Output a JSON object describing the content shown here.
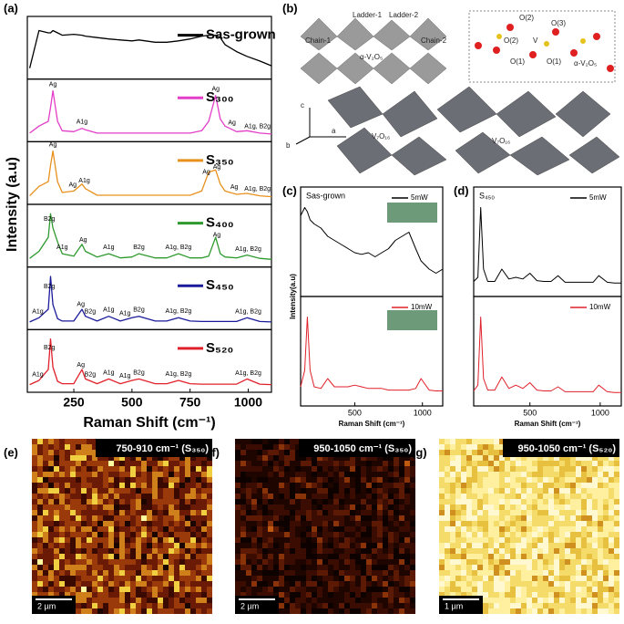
{
  "chart_data": [
    {
      "type": "line",
      "panel": "(a)",
      "ylabel": "Intensity (a.u)",
      "xlabel": "Raman Shift (cm⁻¹)",
      "x": [
        60,
        100,
        140,
        150,
        160,
        180,
        200,
        250,
        285,
        300,
        350,
        400,
        450,
        500,
        530,
        600,
        650,
        700,
        750,
        800,
        830,
        860,
        880,
        900,
        950,
        995,
        1050,
        1100
      ],
      "xlim": [
        50,
        1100
      ],
      "ylim": [
        0,
        1
      ],
      "xticks": [
        250,
        500,
        750,
        1000
      ],
      "series": [
        {
          "name": "Sas-grown",
          "color": "#000000",
          "values": [
            0.1,
            0.9,
            0.85,
            0.85,
            0.9,
            0.85,
            0.8,
            0.82,
            0.8,
            0.78,
            0.75,
            0.72,
            0.7,
            0.68,
            0.7,
            0.65,
            0.65,
            0.68,
            0.72,
            0.78,
            0.8,
            0.8,
            0.75,
            0.6,
            0.45,
            0.35,
            0.25,
            0.15
          ],
          "peaks": []
        },
        {
          "name": "S₃₀₀",
          "color": "#e23ec8",
          "values": [
            0.05,
            0.2,
            0.3,
            0.6,
            0.95,
            0.3,
            0.1,
            0.08,
            0.15,
            0.12,
            0.05,
            0.05,
            0.05,
            0.05,
            0.05,
            0.05,
            0.05,
            0.05,
            0.05,
            0.1,
            0.3,
            0.85,
            0.35,
            0.2,
            0.08,
            0.1,
            0.05,
            0.03
          ],
          "peaks": [
            {
              "x": 160,
              "label": "Ag"
            },
            {
              "x": 285,
              "label": "A1g"
            },
            {
              "x": 860,
              "label": "Ag"
            },
            {
              "x": 930,
              "label": "Ag"
            },
            {
              "x": 1040,
              "label": "A1g, B2g"
            }
          ]
        },
        {
          "name": "S₃₅₀",
          "color": "#e8901c",
          "values": [
            0.05,
            0.25,
            0.35,
            0.7,
            1.0,
            0.35,
            0.12,
            0.15,
            0.3,
            0.2,
            0.06,
            0.06,
            0.06,
            0.06,
            0.06,
            0.06,
            0.06,
            0.06,
            0.06,
            0.15,
            0.55,
            0.6,
            0.3,
            0.15,
            0.08,
            0.1,
            0.05,
            0.03
          ],
          "peaks": [
            {
              "x": 160,
              "label": "Ag"
            },
            {
              "x": 245,
              "label": "Ag"
            },
            {
              "x": 295,
              "label": "A1g"
            },
            {
              "x": 820,
              "label": "Ag"
            },
            {
              "x": 865,
              "label": "Ag"
            },
            {
              "x": 940,
              "label": "Ag"
            },
            {
              "x": 1040,
              "label": "A1g, B2g"
            }
          ]
        },
        {
          "name": "S₄₀₀",
          "color": "#2e9a2e",
          "values": [
            0.05,
            0.2,
            0.5,
            1.0,
            0.7,
            0.4,
            0.15,
            0.1,
            0.35,
            0.2,
            0.08,
            0.15,
            0.06,
            0.08,
            0.15,
            0.06,
            0.06,
            0.15,
            0.06,
            0.06,
            0.1,
            0.5,
            0.15,
            0.08,
            0.06,
            0.12,
            0.05,
            0.03
          ],
          "peaks": [
            {
              "x": 145,
              "label": "B2g"
            },
            {
              "x": 200,
              "label": "A1g"
            },
            {
              "x": 290,
              "label": "Ag"
            },
            {
              "x": 400,
              "label": "A1g"
            },
            {
              "x": 530,
              "label": "B2g"
            },
            {
              "x": 700,
              "label": "A1g, B2g"
            },
            {
              "x": 865,
              "label": "Ag"
            },
            {
              "x": 1000,
              "label": "A1g, B2g"
            }
          ]
        },
        {
          "name": "S₄₅₀",
          "color": "#1a1a9a",
          "values": [
            0.03,
            0.12,
            0.3,
            1.0,
            0.4,
            0.1,
            0.05,
            0.05,
            0.3,
            0.15,
            0.05,
            0.15,
            0.05,
            0.12,
            0.15,
            0.05,
            0.05,
            0.12,
            0.05,
            0.04,
            0.04,
            0.04,
            0.04,
            0.04,
            0.04,
            0.12,
            0.04,
            0.03
          ],
          "peaks": [
            {
              "x": 145,
              "label": "B2g"
            },
            {
              "x": 95,
              "label": "A1g"
            },
            {
              "x": 280,
              "label": "Ag"
            },
            {
              "x": 320,
              "label": "B2g"
            },
            {
              "x": 400,
              "label": "A1g"
            },
            {
              "x": 470,
              "label": "A1g"
            },
            {
              "x": 530,
              "label": "B2g"
            },
            {
              "x": 700,
              "label": "A1g, B2g"
            },
            {
              "x": 1000,
              "label": "A1g, B2g"
            }
          ]
        },
        {
          "name": "S₅₂₀",
          "color": "#e0202a",
          "values": [
            0.03,
            0.12,
            0.35,
            1.0,
            0.4,
            0.1,
            0.05,
            0.05,
            0.35,
            0.15,
            0.05,
            0.15,
            0.05,
            0.12,
            0.15,
            0.05,
            0.05,
            0.12,
            0.05,
            0.04,
            0.04,
            0.04,
            0.04,
            0.04,
            0.04,
            0.15,
            0.04,
            0.03
          ],
          "peaks": [
            {
              "x": 145,
              "label": "B2g"
            },
            {
              "x": 95,
              "label": "A1g"
            },
            {
              "x": 280,
              "label": "Ag"
            },
            {
              "x": 320,
              "label": "B2g"
            },
            {
              "x": 400,
              "label": "A1g"
            },
            {
              "x": 470,
              "label": "A1g"
            },
            {
              "x": 530,
              "label": "B2g"
            },
            {
              "x": 700,
              "label": "A1g, B2g"
            },
            {
              "x": 1000,
              "label": "A1g, B2g"
            }
          ]
        }
      ]
    },
    {
      "type": "line",
      "panel": "(c)",
      "title": "Sas-grown",
      "ylabel": "Intensity(a.u)",
      "xlabel": "Raman Shift (cm⁻¹)",
      "x": [
        100,
        130,
        150,
        170,
        200,
        250,
        300,
        350,
        400,
        450,
        500,
        550,
        600,
        650,
        700,
        750,
        800,
        850,
        900,
        950,
        990,
        1050,
        1100,
        1150
      ],
      "xlim": [
        100,
        1150
      ],
      "ylim": [
        0,
        1
      ],
      "xticks": [
        500,
        1000
      ],
      "series": [
        {
          "name": "5mW",
          "color": "#000000",
          "values": [
            0.85,
            0.95,
            0.9,
            0.8,
            0.75,
            0.7,
            0.6,
            0.55,
            0.5,
            0.45,
            0.4,
            0.38,
            0.4,
            0.35,
            0.4,
            0.45,
            0.55,
            0.6,
            0.65,
            0.45,
            0.3,
            0.2,
            0.15,
            0.2
          ],
          "peaks": []
        },
        {
          "name": "10mW",
          "color": "#e0202a",
          "values": [
            0.1,
            0.3,
            0.95,
            0.3,
            0.1,
            0.08,
            0.2,
            0.1,
            0.1,
            0.1,
            0.12,
            0.1,
            0.08,
            0.08,
            0.08,
            0.06,
            0.06,
            0.06,
            0.06,
            0.08,
            0.2,
            0.06,
            0.05,
            0.05
          ],
          "peaks": []
        }
      ]
    },
    {
      "type": "line",
      "panel": "(d)",
      "title": "S₄₅₀",
      "xlabel": "Raman Shift (cm⁻¹)",
      "x": [
        100,
        130,
        150,
        170,
        200,
        250,
        300,
        350,
        400,
        450,
        500,
        550,
        600,
        650,
        700,
        750,
        800,
        850,
        900,
        950,
        990,
        1050,
        1100,
        1150
      ],
      "xlim": [
        100,
        1150
      ],
      "ylim": [
        0,
        1
      ],
      "xticks": [
        500,
        1000
      ],
      "series": [
        {
          "name": "5mW",
          "color": "#000000",
          "values": [
            0.05,
            0.1,
            0.95,
            0.2,
            0.05,
            0.05,
            0.2,
            0.08,
            0.1,
            0.08,
            0.15,
            0.06,
            0.05,
            0.05,
            0.12,
            0.04,
            0.04,
            0.04,
            0.04,
            0.04,
            0.12,
            0.04,
            0.03,
            0.03
          ],
          "peaks": []
        },
        {
          "name": "10mW",
          "color": "#e0202a",
          "values": [
            0.05,
            0.12,
            0.95,
            0.2,
            0.06,
            0.06,
            0.22,
            0.08,
            0.12,
            0.08,
            0.15,
            0.06,
            0.05,
            0.05,
            0.1,
            0.04,
            0.04,
            0.04,
            0.04,
            0.04,
            0.12,
            0.04,
            0.03,
            0.03
          ],
          "peaks": []
        }
      ]
    }
  ],
  "structure": {
    "panel": "(b)",
    "labels": [
      "Ladder-1",
      "Ladder-2",
      "Chain-1",
      "Chain-2",
      "α-V₂O₅",
      "O(2)",
      "O(3)",
      "O(2)",
      "O(1)",
      "V",
      "O(1)",
      "α-V₂O₅",
      "c",
      "a",
      "b",
      "V₇O₁₆",
      "V₇O₁₆"
    ]
  },
  "maps": [
    {
      "panel": "(e)",
      "label": "750-910 cm⁻¹ (S₃₅₀)",
      "scale": "2 µm"
    },
    {
      "panel": "(f)",
      "label": "950-1050 cm⁻¹ (S₃₅₀)",
      "scale": "2 µm"
    },
    {
      "panel": "(g)",
      "label": "950-1050 cm⁻¹ (S₅₂₀)",
      "scale": "1 µm"
    }
  ]
}
